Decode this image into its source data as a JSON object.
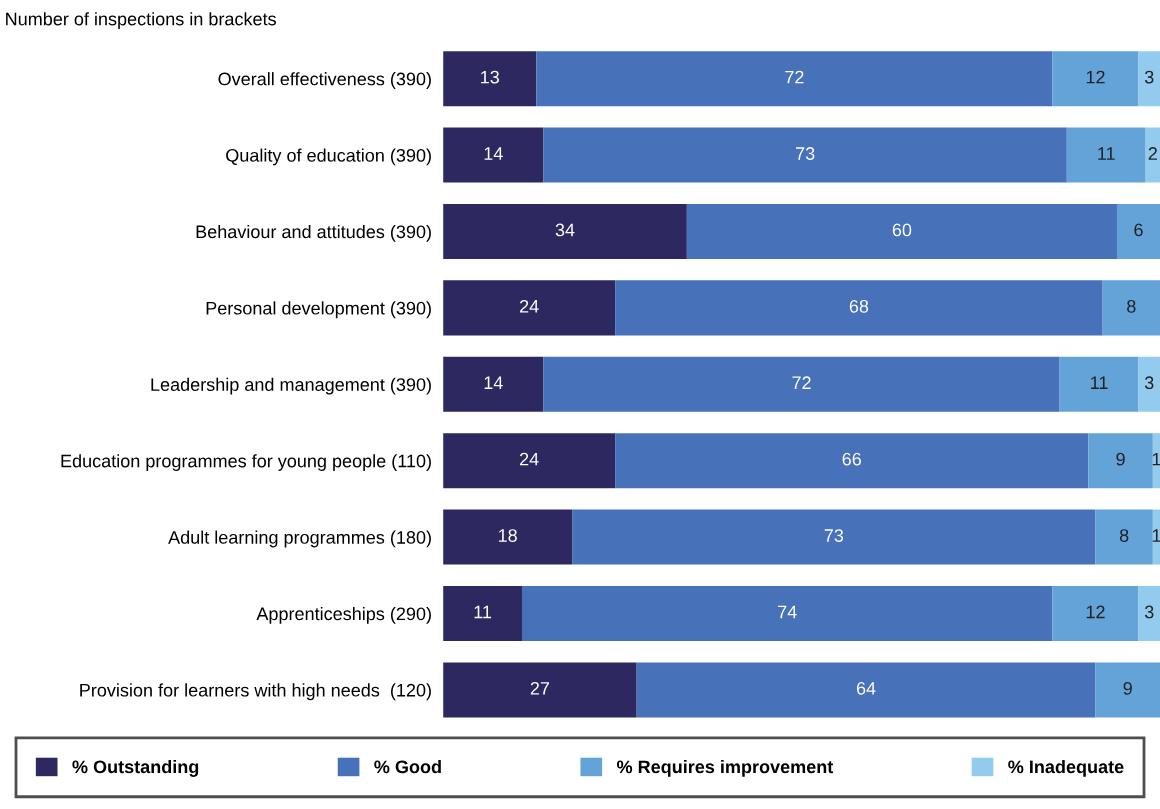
{
  "chart_data": {
    "type": "bar",
    "orientation": "horizontal",
    "stacked": true,
    "data_labels": true,
    "legend": "bottom",
    "grid": false,
    "tick_labels": "y",
    "title": "Number of inspections in brackets",
    "categories": [
      "Overall effectiveness (390)",
      "Quality of education (390)",
      "Behaviour and attitudes (390)",
      "Personal development (390)",
      "Leadership and management (390)",
      "Education programmes for young people (110)",
      "Adult learning programmes (180)",
      "Apprenticeships (290)",
      "Provision for learners with high needs  (120)"
    ],
    "series": [
      {
        "name": "% Outstanding",
        "color": "#2d2960",
        "values": [
          13,
          14,
          34,
          24,
          14,
          24,
          18,
          11,
          27
        ]
      },
      {
        "name": "% Good",
        "color": "#4771b8",
        "values": [
          72,
          73,
          60,
          68,
          72,
          66,
          73,
          74,
          64
        ]
      },
      {
        "name": "% Requires improvement",
        "color": "#63a3d8",
        "values": [
          12,
          11,
          6,
          8,
          11,
          9,
          8,
          12,
          9
        ]
      },
      {
        "name": "% Inadequate",
        "color": "#93cbef",
        "values": [
          3,
          2,
          null,
          null,
          3,
          1,
          1,
          3,
          null
        ]
      }
    ]
  }
}
